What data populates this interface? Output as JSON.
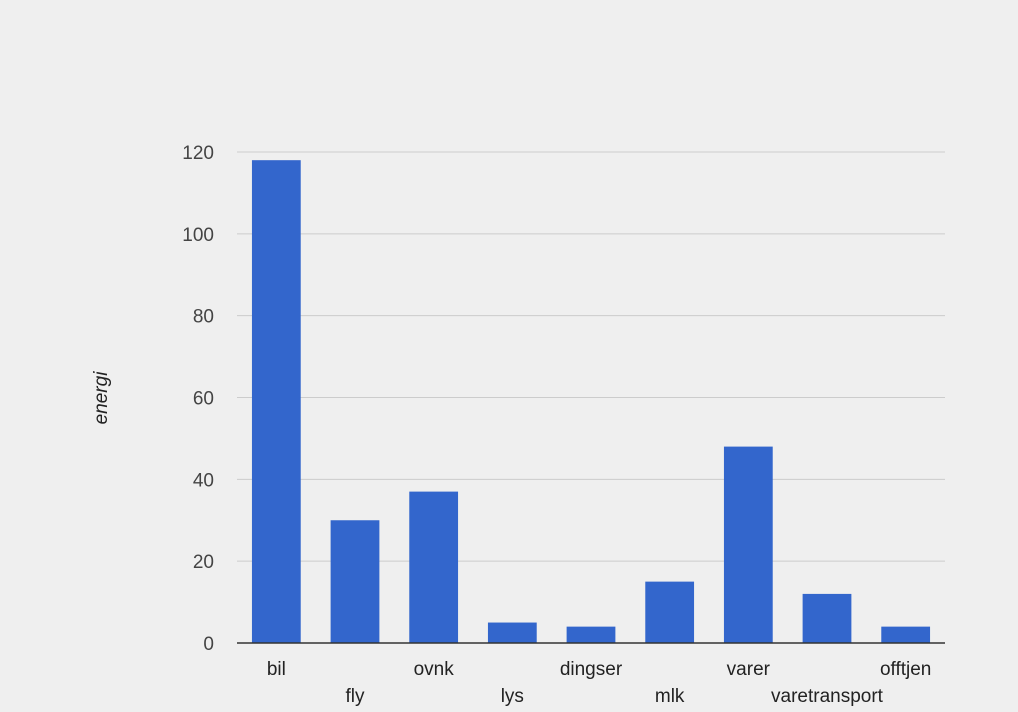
{
  "chart_data": {
    "type": "bar",
    "title": "",
    "xlabel": "",
    "ylabel": "energi",
    "categories": [
      "bil",
      "fly",
      "ovnk",
      "lys",
      "dingser",
      "mlk",
      "varer",
      "varetransport",
      "offtjen"
    ],
    "values": [
      118,
      30,
      37,
      5,
      4,
      15,
      48,
      12,
      4
    ],
    "ylim": [
      0,
      120
    ],
    "yticks": [
      0,
      20,
      40,
      60,
      80,
      100,
      120
    ],
    "grid": true,
    "legend": "none",
    "bar_color": "#3366cc",
    "grid_color": "#cccccc",
    "axis_color": "#333333",
    "background": "#efefef"
  }
}
